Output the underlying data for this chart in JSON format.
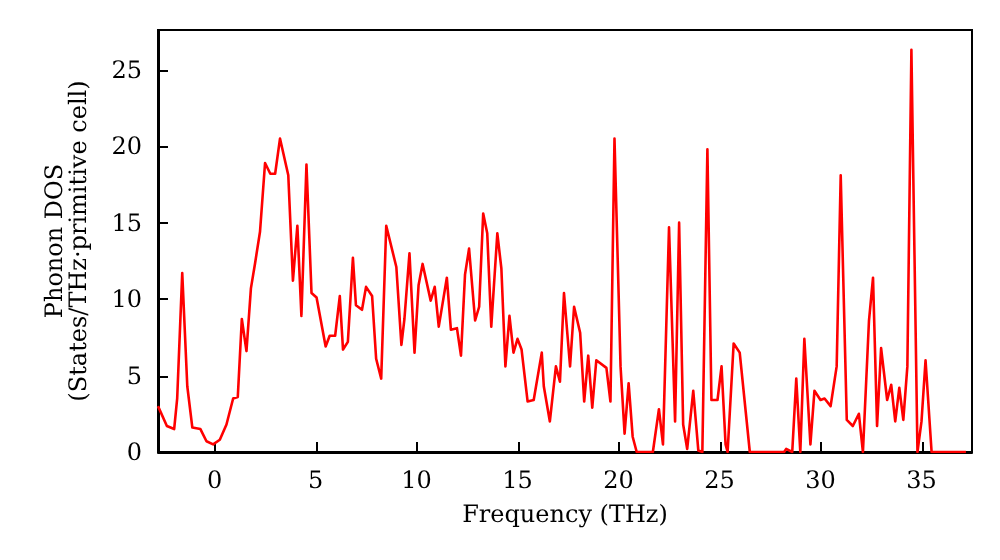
{
  "chart_data": {
    "type": "line",
    "xlabel": "Frequency (THz)",
    "ylabel": "Phonon DOS\n(States/THz·primitive cell)",
    "xlim": [
      -2.8,
      37.5
    ],
    "ylim": [
      0,
      27.6
    ],
    "xticks": [
      0,
      5,
      10,
      15,
      20,
      25,
      30,
      35
    ],
    "yticks": [
      0,
      5,
      10,
      15,
      20,
      25
    ],
    "grid": false,
    "marker": "none",
    "line_style": "solid",
    "series": [
      {
        "color": "#ff0000",
        "x": [
          -2.8,
          -2.36,
          -2.0,
          -1.85,
          -1.6,
          -1.35,
          -1.1,
          -0.7,
          -0.4,
          -0.07,
          0.26,
          0.59,
          0.92,
          1.15,
          1.35,
          1.58,
          1.8,
          2.0,
          2.25,
          2.5,
          2.76,
          3.0,
          3.24,
          3.65,
          3.88,
          4.1,
          4.3,
          4.55,
          4.8,
          5.05,
          5.5,
          5.7,
          5.97,
          6.2,
          6.36,
          6.6,
          6.85,
          7.0,
          7.3,
          7.5,
          7.8,
          8.0,
          8.25,
          8.5,
          9.0,
          9.25,
          9.4,
          9.65,
          9.9,
          10.1,
          10.3,
          10.7,
          10.9,
          11.1,
          11.5,
          11.7,
          12.0,
          12.2,
          12.4,
          12.6,
          12.9,
          13.1,
          13.3,
          13.5,
          13.7,
          14.0,
          14.2,
          14.4,
          14.6,
          14.8,
          15.0,
          15.2,
          15.5,
          15.8,
          16.2,
          16.3,
          16.6,
          16.9,
          17.1,
          17.3,
          17.6,
          17.8,
          18.1,
          18.3,
          18.5,
          18.7,
          18.9,
          19.4,
          19.6,
          19.8,
          20.1,
          20.3,
          20.5,
          20.7,
          20.9,
          21.7,
          22.0,
          22.2,
          22.5,
          22.8,
          23.0,
          23.2,
          23.4,
          23.7,
          23.95,
          24.15,
          24.4,
          24.6,
          24.9,
          25.1,
          25.3,
          25.4,
          25.7,
          26.0,
          26.3,
          26.5,
          28.2,
          28.3,
          28.6,
          28.8,
          29.0,
          29.2,
          29.5,
          29.7,
          30.0,
          30.2,
          30.5,
          30.8,
          31.0,
          31.3,
          31.6,
          31.9,
          32.1,
          32.4,
          32.6,
          32.8,
          33.0,
          33.3,
          33.5,
          33.7,
          33.9,
          34.1,
          34.3,
          34.5,
          34.8,
          35.0,
          35.2,
          35.5,
          37.2
        ],
        "values": [
          3.0,
          1.7,
          1.5,
          3.5,
          11.7,
          4.3,
          1.6,
          1.5,
          0.7,
          0.5,
          0.8,
          1.8,
          3.5,
          3.6,
          8.7,
          6.6,
          10.7,
          12.3,
          14.4,
          18.9,
          18.2,
          18.2,
          20.5,
          18.1,
          11.2,
          14.8,
          8.9,
          18.8,
          10.4,
          10.1,
          6.9,
          7.6,
          7.6,
          10.2,
          6.7,
          7.2,
          12.7,
          9.6,
          9.3,
          10.8,
          10.2,
          6.1,
          4.8,
          14.8,
          12.1,
          7.0,
          8.7,
          13.0,
          6.5,
          10.9,
          12.3,
          9.9,
          10.8,
          8.2,
          11.4,
          8.0,
          8.1,
          6.3,
          11.6,
          13.3,
          8.6,
          9.5,
          15.6,
          14.3,
          8.2,
          14.3,
          12.0,
          5.6,
          8.9,
          6.5,
          7.4,
          6.7,
          3.3,
          3.4,
          6.5,
          4.3,
          2.0,
          5.6,
          4.6,
          10.4,
          5.6,
          9.5,
          7.8,
          3.3,
          6.3,
          2.9,
          6.0,
          5.5,
          3.3,
          20.5,
          5.6,
          1.2,
          4.5,
          1.0,
          0,
          0,
          2.8,
          0.5,
          14.7,
          2.0,
          15.0,
          1.8,
          0.2,
          4.0,
          0.1,
          0,
          19.8,
          3.4,
          3.4,
          5.6,
          0.5,
          0,
          7.1,
          6.5,
          2.6,
          0,
          0,
          0.2,
          0,
          4.8,
          0,
          7.4,
          0.5,
          4.0,
          3.4,
          3.5,
          3.0,
          5.6,
          18.1,
          2.1,
          1.7,
          2.5,
          0,
          8.6,
          11.4,
          1.7,
          6.8,
          3.4,
          4.4,
          2.0,
          4.2,
          2.1,
          5.6,
          26.3,
          0,
          2.0,
          6.0,
          0,
          0
        ]
      }
    ]
  }
}
